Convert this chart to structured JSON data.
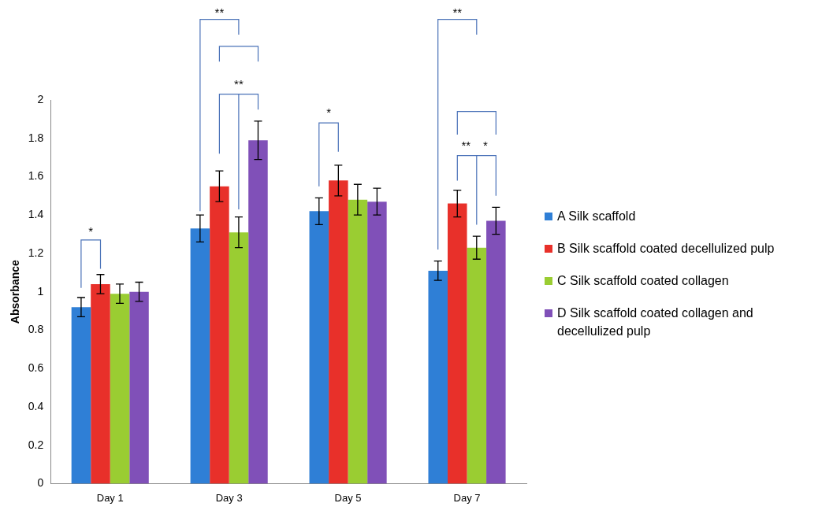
{
  "chart_data": {
    "type": "bar",
    "ylabel": "Absorbance",
    "categories": [
      "Day 1",
      "Day 3",
      "Day 5",
      "Day 7"
    ],
    "series": [
      {
        "name": "A Silk scaffold",
        "color": "#2f7fd6",
        "values": [
          0.92,
          1.33,
          1.42,
          1.11
        ],
        "errors": [
          0.05,
          0.07,
          0.07,
          0.05
        ]
      },
      {
        "name": "B Silk scaffold coated decellulized pulp",
        "color": "#e8302a",
        "values": [
          1.04,
          1.55,
          1.58,
          1.46
        ],
        "errors": [
          0.05,
          0.08,
          0.08,
          0.07
        ]
      },
      {
        "name": "C Silk scaffold coated collagen",
        "color": "#9acd32",
        "values": [
          0.99,
          1.31,
          1.48,
          1.23
        ],
        "errors": [
          0.05,
          0.08,
          0.08,
          0.06
        ]
      },
      {
        "name": "D Silk scaffold coated collagen and decellulized pulp",
        "color": "#8050b8",
        "values": [
          1.0,
          1.79,
          1.47,
          1.37
        ],
        "errors": [
          0.05,
          0.1,
          0.07,
          0.07
        ]
      }
    ],
    "ylim": [
      0,
      2
    ],
    "yticks": [
      0,
      0.2,
      0.4,
      0.6,
      0.8,
      1,
      1.2,
      1.4,
      1.6,
      1.8,
      2
    ],
    "grid": false,
    "legend": "right",
    "annotations": [
      "*",
      "**",
      "**",
      "*",
      "**",
      "**",
      "*"
    ]
  }
}
